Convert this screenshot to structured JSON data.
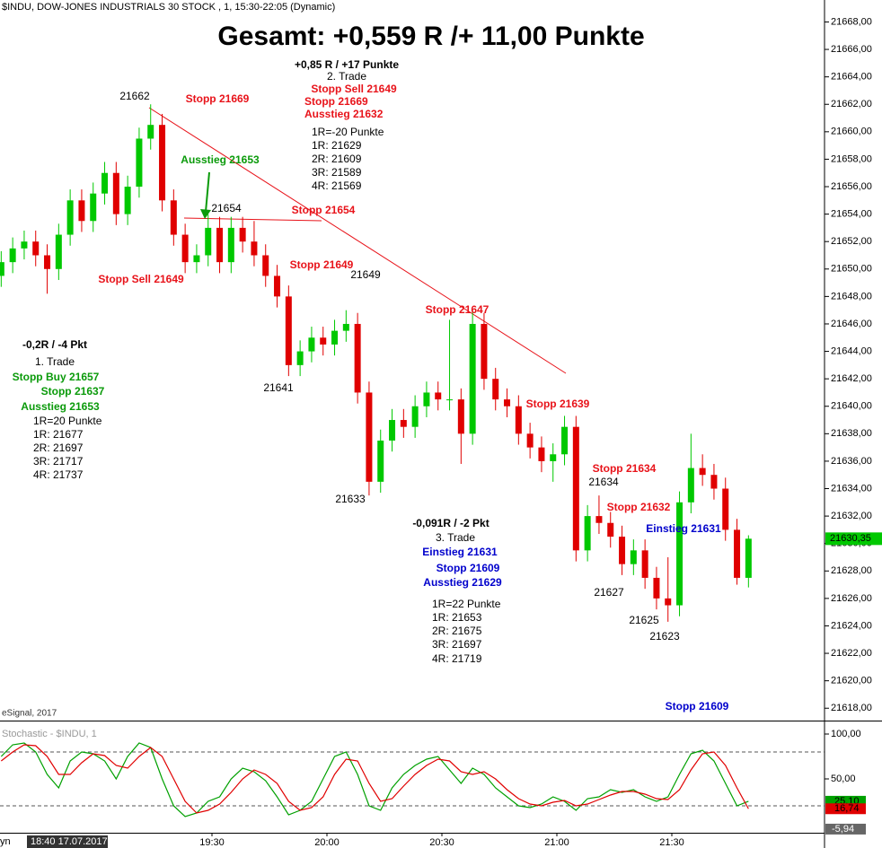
{
  "chart_data": [
    {
      "type": "candlestick",
      "header": "$INDU, DOW-JONES INDUSTRIALS 30 STOCK , 1, 15:30-22:05 (Dynamic)",
      "title": "Gesamt: +0,559 R /+ 11,00 Punkte",
      "source": "eSignal, 2017",
      "up_color": "#00c800",
      "down_color": "#e00000",
      "x": [
        "18:35",
        "18:38",
        "18:41",
        "18:44",
        "18:47",
        "18:50",
        "18:53",
        "18:56",
        "18:59",
        "19:02",
        "19:05",
        "19:08",
        "19:11",
        "19:14",
        "19:17",
        "19:20",
        "19:23",
        "19:26",
        "19:29",
        "19:32",
        "19:35",
        "19:38",
        "19:41",
        "19:44",
        "19:47",
        "19:50",
        "19:53",
        "19:56",
        "19:59",
        "20:02",
        "20:05",
        "20:08",
        "20:11",
        "20:14",
        "20:17",
        "20:20",
        "20:23",
        "20:26",
        "20:29",
        "20:32",
        "20:35",
        "20:38",
        "20:41",
        "20:44",
        "20:47",
        "20:50",
        "20:53",
        "20:56",
        "20:59",
        "21:02",
        "21:05",
        "21:08",
        "21:11",
        "21:14",
        "21:17",
        "21:20",
        "21:23",
        "21:26",
        "21:29",
        "21:32",
        "21:35",
        "21:38",
        "21:41",
        "21:44",
        "21:47",
        "21:50"
      ],
      "open": [
        21649.5,
        21650.5,
        21651.5,
        21652.0,
        21651.0,
        21650.0,
        21652.5,
        21655.0,
        21653.5,
        21655.5,
        21657.0,
        21654.0,
        21656.0,
        21659.5,
        21660.5,
        21655.0,
        21652.5,
        21650.5,
        21651.0,
        21653.0,
        21650.5,
        21653.0,
        21652.0,
        21651.0,
        21649.5,
        21648.0,
        21643.0,
        21644.0,
        21645.0,
        21644.5,
        21645.5,
        21646.0,
        21641.0,
        21634.5,
        21637.5,
        21639.0,
        21638.5,
        21640.0,
        21641.0,
        21640.5,
        21640.5,
        21638.0,
        21646.0,
        21642.0,
        21640.5,
        21640.0,
        21638.0,
        21637.0,
        21636.0,
        21636.5,
        21638.5,
        21629.5,
        21632.0,
        21631.5,
        21630.5,
        21628.5,
        21629.5,
        21627.5,
        21626.0,
        21625.5,
        21633.0,
        21635.5,
        21635.0,
        21634.0,
        21631.0,
        21627.5
      ],
      "high": [
        21651.3,
        21652.3,
        21652.8,
        21652.8,
        21651.8,
        21653.3,
        21655.8,
        21655.8,
        21656.3,
        21657.8,
        21657.8,
        21656.8,
        21660.3,
        21662.0,
        21661.3,
        21655.8,
        21653.3,
        21651.8,
        21654.0,
        21653.8,
        21653.8,
        21653.8,
        21653.5,
        21651.8,
        21650.3,
        21648.8,
        21644.8,
        21645.8,
        21645.8,
        21646.3,
        21647.0,
        21646.8,
        21641.8,
        21638.3,
        21639.8,
        21639.8,
        21640.8,
        21641.8,
        21641.8,
        21646.3,
        21641.3,
        21647.0,
        21646.8,
        21642.8,
        21641.3,
        21640.8,
        21638.8,
        21637.8,
        21637.3,
        21639.3,
        21639.3,
        21632.8,
        21633.5,
        21632.3,
        21631.3,
        21630.3,
        21630.3,
        21628.3,
        21629.0,
        21633.8,
        21638.0,
        21636.5,
        21635.8,
        21634.8,
        21631.8,
        21630.6
      ],
      "low": [
        21648.7,
        21649.7,
        21650.7,
        21650.2,
        21648.2,
        21649.2,
        21651.7,
        21652.7,
        21652.7,
        21654.7,
        21653.2,
        21653.2,
        21655.2,
        21658.7,
        21654.2,
        21651.7,
        21649.7,
        21649.7,
        21650.2,
        21649.7,
        21649.7,
        21651.2,
        21650.2,
        21648.7,
        21647.2,
        21642.2,
        21642.2,
        21643.2,
        21643.7,
        21643.7,
        21644.7,
        21640.2,
        21633.5,
        21633.7,
        21636.7,
        21637.7,
        21637.7,
        21639.2,
        21639.7,
        21639.7,
        21635.8,
        21637.2,
        21641.2,
        21639.7,
        21639.2,
        21637.2,
        21636.2,
        21635.2,
        21634.5,
        21635.7,
        21628.7,
        21628.7,
        21630.7,
        21629.7,
        21627.7,
        21627.7,
        21626.7,
        21625.2,
        21624.3,
        21624.7,
        21632.2,
        21634.2,
        21633.2,
        21630.2,
        21627.0,
        21626.8
      ],
      "close": [
        21650.5,
        21651.5,
        21652.0,
        21651.0,
        21650.0,
        21652.5,
        21655.0,
        21653.5,
        21655.5,
        21657.0,
        21654.0,
        21656.0,
        21659.5,
        21660.5,
        21655.0,
        21652.5,
        21650.5,
        21651.0,
        21653.0,
        21650.5,
        21653.0,
        21652.0,
        21651.0,
        21649.5,
        21648.0,
        21643.0,
        21644.0,
        21645.0,
        21644.5,
        21645.5,
        21646.0,
        21641.0,
        21634.5,
        21637.5,
        21639.0,
        21638.5,
        21640.0,
        21641.0,
        21640.5,
        21640.5,
        21638.0,
        21646.0,
        21642.0,
        21640.5,
        21640.0,
        21638.0,
        21637.0,
        21636.0,
        21636.5,
        21638.5,
        21629.5,
        21632.0,
        21631.5,
        21630.5,
        21628.5,
        21629.5,
        21627.5,
        21626.0,
        21625.5,
        21633.0,
        21635.5,
        21635.0,
        21634.0,
        21631.0,
        21627.5,
        21630.35
      ],
      "last_price": {
        "value": 21630.35,
        "label": "21630,35",
        "color": "#00c800"
      },
      "ylim": [
        21617.1,
        21669.6
      ],
      "yticks": [
        {
          "value": 21618,
          "label": "21618,00"
        },
        {
          "value": 21620,
          "label": "21620,00"
        },
        {
          "value": 21622,
          "label": "21622,00"
        },
        {
          "value": 21624,
          "label": "21624,00"
        },
        {
          "value": 21626,
          "label": "21626,00"
        },
        {
          "value": 21628,
          "label": "21628,00"
        },
        {
          "value": 21630,
          "label": "21630,00"
        },
        {
          "value": 21632,
          "label": "21632,00"
        },
        {
          "value": 21634,
          "label": "21634,00"
        },
        {
          "value": 21636,
          "label": "21636,00"
        },
        {
          "value": 21638,
          "label": "21638,00"
        },
        {
          "value": 21640,
          "label": "21640,00"
        },
        {
          "value": 21642,
          "label": "21642,00"
        },
        {
          "value": 21644,
          "label": "21644,00"
        },
        {
          "value": 21646,
          "label": "21646,00"
        },
        {
          "value": 21648,
          "label": "21648,00"
        },
        {
          "value": 21650,
          "label": "21650,00"
        },
        {
          "value": 21652,
          "label": "21652,00"
        },
        {
          "value": 21654,
          "label": "21654,00"
        },
        {
          "value": 21656,
          "label": "21656,00"
        },
        {
          "value": 21658,
          "label": "21658,00"
        },
        {
          "value": 21660,
          "label": "21660,00"
        },
        {
          "value": 21662,
          "label": "21662,00"
        },
        {
          "value": 21664,
          "label": "21664,00"
        },
        {
          "value": 21666,
          "label": "21666,00"
        },
        {
          "value": 21668,
          "label": "21668,00"
        }
      ],
      "annotations": [
        {
          "text": "+0,85 R / +17 Punkte",
          "color": "#000000",
          "bold": true
        },
        {
          "text": "2. Trade",
          "color": "#000000",
          "bold": false
        },
        {
          "text": "Stopp Sell 21649",
          "color": "#e8131a",
          "bold": true
        },
        {
          "text": "Stopp 21669",
          "color": "#e8131a",
          "bold": true
        },
        {
          "text": "Ausstieg 21632",
          "color": "#e8131a",
          "bold": true
        },
        {
          "text": "1R=-20 Punkte",
          "color": "#000000",
          "bold": false
        },
        {
          "text": "1R: 21629",
          "color": "#000000",
          "bold": false
        },
        {
          "text": "2R: 21609",
          "color": "#000000",
          "bold": false
        },
        {
          "text": "3R: 21589",
          "color": "#000000",
          "bold": false
        },
        {
          "text": "4R: 21569",
          "color": "#000000",
          "bold": false
        },
        {
          "text": "21662",
          "color": "#000000",
          "bold": false
        },
        {
          "text": "Stopp 21669",
          "color": "#e8131a",
          "bold": true
        },
        {
          "text": "Ausstieg 21653",
          "color": "#0a9a0a",
          "bold": true
        },
        {
          "text": "21654",
          "color": "#000000",
          "bold": false
        },
        {
          "text": "Stopp 21654",
          "color": "#e8131a",
          "bold": true
        },
        {
          "text": "Stopp Sell 21649",
          "color": "#e8131a",
          "bold": true
        },
        {
          "text": "Stopp 21649",
          "color": "#e8131a",
          "bold": true
        },
        {
          "text": "21649",
          "color": "#000000",
          "bold": false
        },
        {
          "text": "Stopp 21647",
          "color": "#e8131a",
          "bold": true
        },
        {
          "text": "21641",
          "color": "#000000",
          "bold": false
        },
        {
          "text": "-0,2R / -4 Pkt",
          "color": "#000000",
          "bold": true
        },
        {
          "text": "1. Trade",
          "color": "#000000",
          "bold": false
        },
        {
          "text": "Stopp Buy 21657",
          "color": "#0a9a0a",
          "bold": true
        },
        {
          "text": "Stopp 21637",
          "color": "#0a9a0a",
          "bold": true
        },
        {
          "text": "Ausstieg 21653",
          "color": "#0a9a0a",
          "bold": true
        },
        {
          "text": "1R=20 Punkte",
          "color": "#000000",
          "bold": false
        },
        {
          "text": "1R: 21677",
          "color": "#000000",
          "bold": false
        },
        {
          "text": "2R: 21697",
          "color": "#000000",
          "bold": false
        },
        {
          "text": "3R: 21717",
          "color": "#000000",
          "bold": false
        },
        {
          "text": "4R: 21737",
          "color": "#000000",
          "bold": false
        },
        {
          "text": "21633",
          "color": "#000000",
          "bold": false
        },
        {
          "text": "Stopp 21639",
          "color": "#e8131a",
          "bold": true
        },
        {
          "text": "Stopp 21634",
          "color": "#e8131a",
          "bold": true
        },
        {
          "text": "21634",
          "color": "#000000",
          "bold": false
        },
        {
          "text": "Stopp 21632",
          "color": "#e8131a",
          "bold": true
        },
        {
          "text": "Einstieg 21631",
          "color": "#0000cc",
          "bold": true
        },
        {
          "text": "21627",
          "color": "#000000",
          "bold": false
        },
        {
          "text": "21625",
          "color": "#000000",
          "bold": false
        },
        {
          "text": "21623",
          "color": "#000000",
          "bold": false
        },
        {
          "text": "-0,091R / -2 Pkt",
          "color": "#000000",
          "bold": true
        },
        {
          "text": "3. Trade",
          "color": "#000000",
          "bold": false
        },
        {
          "text": "Einstieg 21631",
          "color": "#0000cc",
          "bold": true
        },
        {
          "text": "Stopp 21609",
          "color": "#0000cc",
          "bold": true
        },
        {
          "text": "Ausstieg 21629",
          "color": "#0000cc",
          "bold": true
        },
        {
          "text": "1R=22 Punkte",
          "color": "#000000",
          "bold": false
        },
        {
          "text": "1R: 21653",
          "color": "#000000",
          "bold": false
        },
        {
          "text": "2R: 21675",
          "color": "#000000",
          "bold": false
        },
        {
          "text": "3R: 21697",
          "color": "#000000",
          "bold": false
        },
        {
          "text": "4R: 21719",
          "color": "#000000",
          "bold": false
        },
        {
          "text": "Stopp 21609",
          "color": "#0000cc",
          "bold": true
        }
      ]
    },
    {
      "type": "line",
      "title": "Stochastic - $INDU, 1",
      "cursor_label": "18:40 17.07.2017",
      "corner_label": "yn",
      "x": [
        "18:35",
        "18:38",
        "18:41",
        "18:44",
        "18:47",
        "18:50",
        "18:53",
        "18:56",
        "18:59",
        "19:02",
        "19:05",
        "19:08",
        "19:11",
        "19:14",
        "19:17",
        "19:20",
        "19:23",
        "19:26",
        "19:29",
        "19:32",
        "19:35",
        "19:38",
        "19:41",
        "19:44",
        "19:47",
        "19:50",
        "19:53",
        "19:56",
        "19:59",
        "20:02",
        "20:05",
        "20:08",
        "20:11",
        "20:14",
        "20:17",
        "20:20",
        "20:23",
        "20:26",
        "20:29",
        "20:32",
        "20:35",
        "20:38",
        "20:41",
        "20:44",
        "20:47",
        "20:50",
        "20:53",
        "20:56",
        "20:59",
        "21:02",
        "21:05",
        "21:08",
        "21:11",
        "21:14",
        "21:17",
        "21:20",
        "21:23",
        "21:26",
        "21:29",
        "21:32",
        "21:35",
        "21:38",
        "21:41",
        "21:44",
        "21:47",
        "21:50"
      ],
      "series": [
        {
          "color": "#00a000",
          "last_label": "25,10",
          "values": [
            75,
            88,
            90,
            80,
            55,
            40,
            70,
            80,
            78,
            70,
            50,
            75,
            90,
            85,
            50,
            20,
            8,
            12,
            25,
            30,
            50,
            62,
            58,
            48,
            30,
            10,
            15,
            25,
            50,
            75,
            80,
            55,
            20,
            15,
            40,
            55,
            65,
            72,
            75,
            60,
            45,
            62,
            55,
            40,
            30,
            20,
            18,
            22,
            30,
            25,
            15,
            28,
            30,
            38,
            35,
            38,
            30,
            25,
            30,
            55,
            78,
            82,
            70,
            45,
            20,
            25.1
          ]
        },
        {
          "color": "#e00000",
          "last_label": "16,74",
          "values": [
            70,
            80,
            88,
            87,
            75,
            55,
            55,
            68,
            78,
            76,
            65,
            62,
            75,
            85,
            75,
            50,
            25,
            12,
            15,
            22,
            35,
            50,
            60,
            55,
            45,
            25,
            15,
            18,
            30,
            55,
            72,
            70,
            45,
            25,
            28,
            42,
            55,
            65,
            72,
            70,
            58,
            55,
            58,
            50,
            38,
            28,
            22,
            20,
            24,
            26,
            20,
            22,
            27,
            32,
            36,
            36,
            33,
            28,
            27,
            38,
            60,
            78,
            80,
            65,
            40,
            16.74
          ]
        }
      ],
      "marker": {
        "value": -5.94,
        "label": "-5,94"
      },
      "levels": [
        80,
        20
      ],
      "ylim": [
        -10,
        113
      ],
      "yticks": [
        {
          "value": 100,
          "label": "100,00"
        },
        {
          "value": 50,
          "label": "50,00"
        }
      ],
      "xticks": [
        "19:30",
        "20:00",
        "20:30",
        "21:00",
        "21:30"
      ]
    }
  ]
}
